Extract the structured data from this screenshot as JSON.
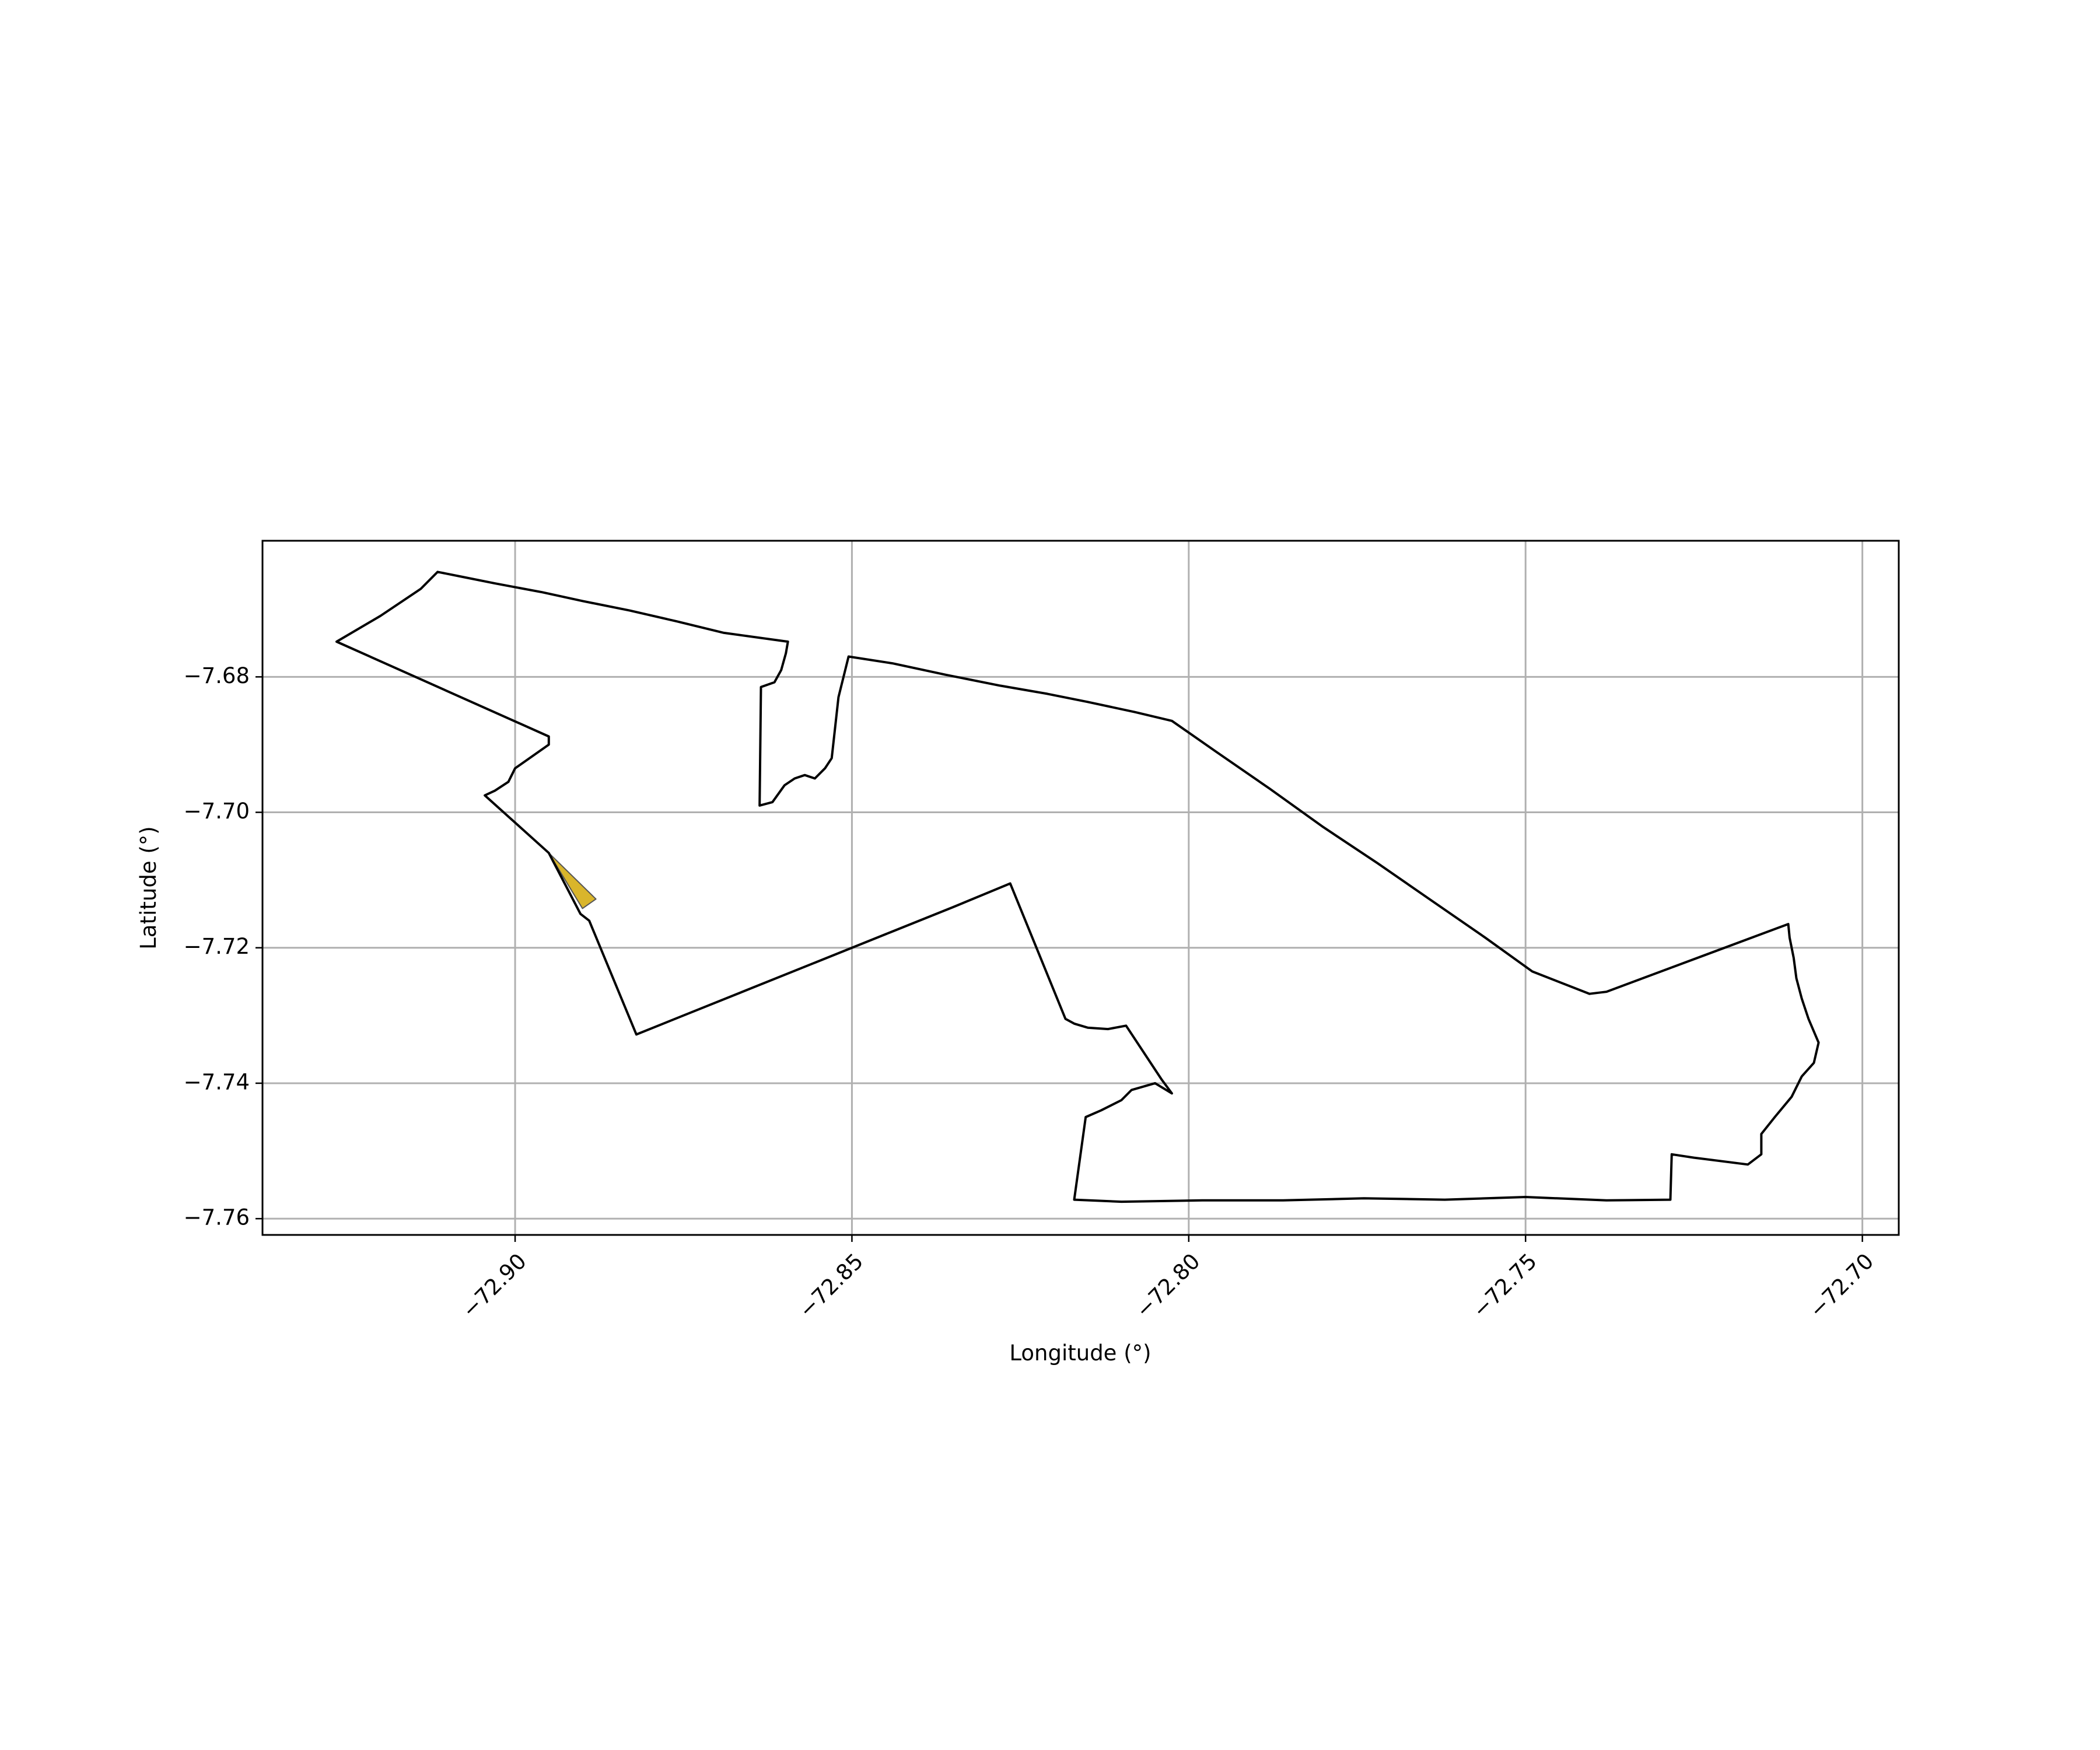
{
  "chart_data": {
    "type": "map",
    "title": "",
    "xlabel": "Longitude (°)",
    "ylabel": "Latitude (°)",
    "xlim": [
      -72.9375,
      -72.6946
    ],
    "ylim": [
      -7.7624,
      -7.6599
    ],
    "grid": true,
    "xticks": [
      {
        "value": -72.9,
        "label": "−72.90"
      },
      {
        "value": -72.85,
        "label": "−72.85"
      },
      {
        "value": -72.8,
        "label": "−72.80"
      },
      {
        "value": -72.75,
        "label": "−72.75"
      },
      {
        "value": -72.7,
        "label": "−72.70"
      }
    ],
    "yticks": [
      {
        "value": -7.68,
        "label": "−7.68"
      },
      {
        "value": -7.7,
        "label": "−7.70"
      },
      {
        "value": -7.72,
        "label": "−7.72"
      },
      {
        "value": -7.74,
        "label": "−7.74"
      },
      {
        "value": -7.76,
        "label": "−7.76"
      }
    ],
    "boundary": {
      "stroke": "#000000",
      "fill": "none",
      "points": [
        [
          -72.9115,
          -7.6645
        ],
        [
          -72.908,
          -7.6652
        ],
        [
          -72.903,
          -7.6662
        ],
        [
          -72.896,
          -7.6675
        ],
        [
          -72.89,
          -7.6688
        ],
        [
          -72.883,
          -7.6702
        ],
        [
          -72.876,
          -7.6718
        ],
        [
          -72.869,
          -7.6735
        ],
        [
          -72.8595,
          -7.6748
        ],
        [
          -72.8598,
          -7.6765
        ],
        [
          -72.8605,
          -7.679
        ],
        [
          -72.8615,
          -7.6808
        ],
        [
          -72.8635,
          -7.6815
        ],
        [
          -72.8637,
          -7.699
        ],
        [
          -72.8618,
          -7.6985
        ],
        [
          -72.86,
          -7.696
        ],
        [
          -72.8585,
          -7.695
        ],
        [
          -72.857,
          -7.6945
        ],
        [
          -72.8555,
          -7.695
        ],
        [
          -72.854,
          -7.6935
        ],
        [
          -72.853,
          -7.692
        ],
        [
          -72.852,
          -7.683
        ],
        [
          -72.8505,
          -7.677
        ],
        [
          -72.844,
          -7.678
        ],
        [
          -72.836,
          -7.6797
        ],
        [
          -72.828,
          -7.6813
        ],
        [
          -72.821,
          -7.6825
        ],
        [
          -72.815,
          -7.6837
        ],
        [
          -72.808,
          -7.6852
        ],
        [
          -72.8025,
          -7.6865
        ],
        [
          -72.796,
          -7.691
        ],
        [
          -72.788,
          -7.6965
        ],
        [
          -72.78,
          -7.7022
        ],
        [
          -72.772,
          -7.7075
        ],
        [
          -72.764,
          -7.713
        ],
        [
          -72.756,
          -7.7185
        ],
        [
          -72.749,
          -7.7235
        ],
        [
          -72.7405,
          -7.7268
        ],
        [
          -72.738,
          -7.7265
        ],
        [
          -72.711,
          -7.7165
        ],
        [
          -72.7108,
          -7.7185
        ],
        [
          -72.7102,
          -7.7215
        ],
        [
          -72.7098,
          -7.7245
        ],
        [
          -72.709,
          -7.7275
        ],
        [
          -72.708,
          -7.7305
        ],
        [
          -72.7065,
          -7.734
        ],
        [
          -72.7072,
          -7.737
        ],
        [
          -72.709,
          -7.739
        ],
        [
          -72.7105,
          -7.742
        ],
        [
          -72.713,
          -7.745
        ],
        [
          -72.715,
          -7.7475
        ],
        [
          -72.715,
          -7.7505
        ],
        [
          -72.717,
          -7.752
        ],
        [
          -72.725,
          -7.751
        ],
        [
          -72.7283,
          -7.7505
        ],
        [
          -72.7285,
          -7.7572
        ],
        [
          -72.738,
          -7.7573
        ],
        [
          -72.75,
          -7.7568
        ],
        [
          -72.762,
          -7.7572
        ],
        [
          -72.774,
          -7.757
        ],
        [
          -72.786,
          -7.7573
        ],
        [
          -72.798,
          -7.7573
        ],
        [
          -72.81,
          -7.7575
        ],
        [
          -72.817,
          -7.7572
        ],
        [
          -72.8153,
          -7.745
        ],
        [
          -72.813,
          -7.744
        ],
        [
          -72.81,
          -7.7425
        ],
        [
          -72.8085,
          -7.741
        ],
        [
          -72.805,
          -7.74
        ],
        [
          -72.8025,
          -7.7415
        ],
        [
          -72.804,
          -7.7395
        ],
        [
          -72.8093,
          -7.7315
        ],
        [
          -72.812,
          -7.732
        ],
        [
          -72.815,
          -7.7318
        ],
        [
          -72.817,
          -7.7312
        ],
        [
          -72.8183,
          -7.7305
        ],
        [
          -72.8265,
          -7.7105
        ],
        [
          -72.835,
          -7.714
        ],
        [
          -72.845,
          -7.718
        ],
        [
          -72.855,
          -7.722
        ],
        [
          -72.865,
          -7.726
        ],
        [
          -72.875,
          -7.73
        ],
        [
          -72.882,
          -7.7328
        ],
        [
          -72.889,
          -7.716
        ],
        [
          -72.8903,
          -7.715
        ],
        [
          -72.895,
          -7.706
        ],
        [
          -72.9045,
          -7.6975
        ],
        [
          -72.903,
          -7.6968
        ],
        [
          -72.901,
          -7.6955
        ],
        [
          -72.9,
          -7.6935
        ],
        [
          -72.895,
          -7.69
        ],
        [
          -72.895,
          -7.6888
        ],
        [
          -72.9265,
          -7.6748
        ],
        [
          -72.92,
          -7.671
        ],
        [
          -72.914,
          -7.667
        ],
        [
          -72.9115,
          -7.6645
        ]
      ]
    },
    "highlight": {
      "fill": "#d9b52b",
      "stroke": "#555555",
      "points": [
        [
          -72.895,
          -7.706
        ],
        [
          -72.888,
          -7.7128
        ],
        [
          -72.89,
          -7.7142
        ],
        [
          -72.895,
          -7.706
        ]
      ]
    }
  }
}
